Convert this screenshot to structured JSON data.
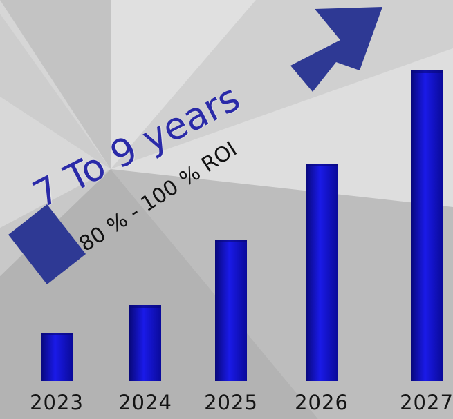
{
  "headline": "7 To 9 years",
  "subheadline": "80 % - 100 % ROI",
  "colors": {
    "bar": "#1010d0",
    "bar_dark": "#08087a",
    "arrow": "#2e3994",
    "headline": "#2a2aa8"
  },
  "chart_data": {
    "type": "bar",
    "title": "",
    "xlabel": "",
    "ylabel": "",
    "categories": [
      "2023",
      "2024",
      "2025",
      "2026",
      "2027"
    ],
    "values": [
      14,
      22,
      41,
      63,
      90
    ],
    "ylim": [
      0,
      100
    ],
    "grid": false,
    "legend": "none"
  }
}
